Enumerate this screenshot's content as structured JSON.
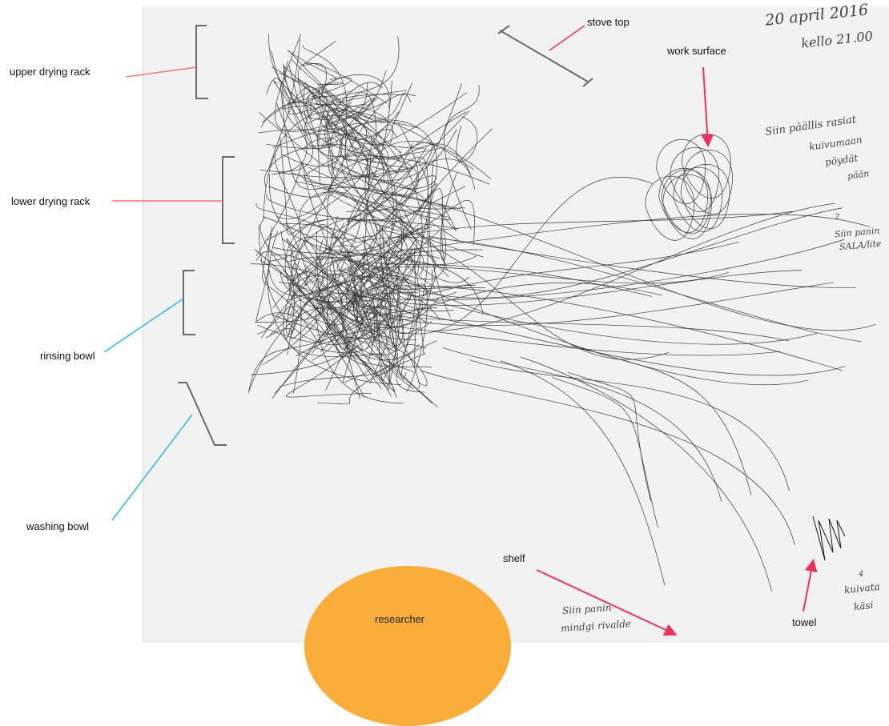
{
  "labels": {
    "upper_drying_rack": "upper drying rack",
    "lower_drying_rack": "lower drying rack",
    "rinsing_bowl": "rinsing bowl",
    "washing_bowl": "washing bowl",
    "stove_top": "stove top",
    "work_surface": "work surface",
    "shelf": "shelf",
    "towel": "towel",
    "researcher": "researcher"
  },
  "handwriting": {
    "date": "20 april 2016",
    "time": "kello 21.00",
    "note1_line1": "Siin päällis rasiat",
    "note1_line2": "kuivumaan",
    "note1_line3": "pöydät",
    "note1_line4": "pään",
    "note2_number": "2",
    "note2_line1": "Siin panin",
    "note2_line2": "SALA/lite",
    "note3_line1": "Siin panin",
    "note3_line2": "mindgi rivalde",
    "note4_number": "4",
    "note4_line1": "kuivata",
    "note4_line2": "käsi"
  },
  "colors": {
    "arrow_red": "#e8335e",
    "connector_coral": "#f07b6e",
    "connector_cyan": "#2bbbe0",
    "researcher_orange": "#f9ae3c",
    "scribble": "#1a1a1a",
    "bracket": "#6a6a6a"
  }
}
